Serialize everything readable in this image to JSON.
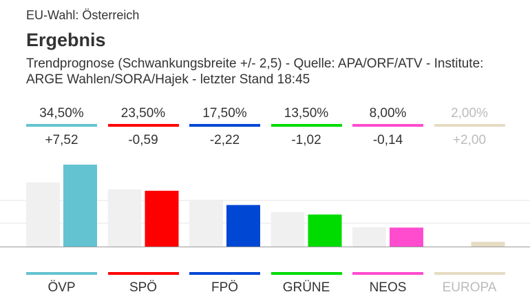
{
  "header": {
    "kicker": "EU-Wahl: Österreich",
    "title": "Ergebnis",
    "subtitle": "Trendprognose (Schwankungsbreite +/- 2,5) - Quelle: APA/ORF/ATV - Institute: ARGE Wahlen/SORA/Hajek - letzter Stand 18:45"
  },
  "colors": {
    "previous_bar": "#f0f0f0",
    "gridline": "#e6e6e6",
    "baseline": "#999999",
    "muted_text": "#bbbbbb"
  },
  "chart_data": {
    "type": "bar",
    "categories": [
      "ÖVP",
      "SPÖ",
      "FPÖ",
      "GRÜNE",
      "NEOS",
      "EUROPA"
    ],
    "series": [
      {
        "values": [
          27.0,
          24.1,
          19.7,
          14.5,
          8.1,
          0.0
        ]
      },
      {
        "values": [
          34.5,
          23.5,
          17.5,
          13.5,
          8.0,
          2.0
        ]
      }
    ],
    "value_labels": [
      "34,50%",
      "23,50%",
      "17,50%",
      "13,50%",
      "8,00%",
      "2,00%"
    ],
    "change_labels": [
      "+7,52",
      "-0,59",
      "-2,22",
      "-1,02",
      "-0,14",
      "+2,00"
    ],
    "party_colors": [
      "#63c3d1",
      "#ff0000",
      "#0047d4",
      "#00dc00",
      "#ff4ccf",
      "#e5dcc3"
    ],
    "muted": [
      false,
      false,
      false,
      false,
      false,
      true
    ],
    "ylim": [
      0,
      34.5
    ],
    "grid": true
  }
}
